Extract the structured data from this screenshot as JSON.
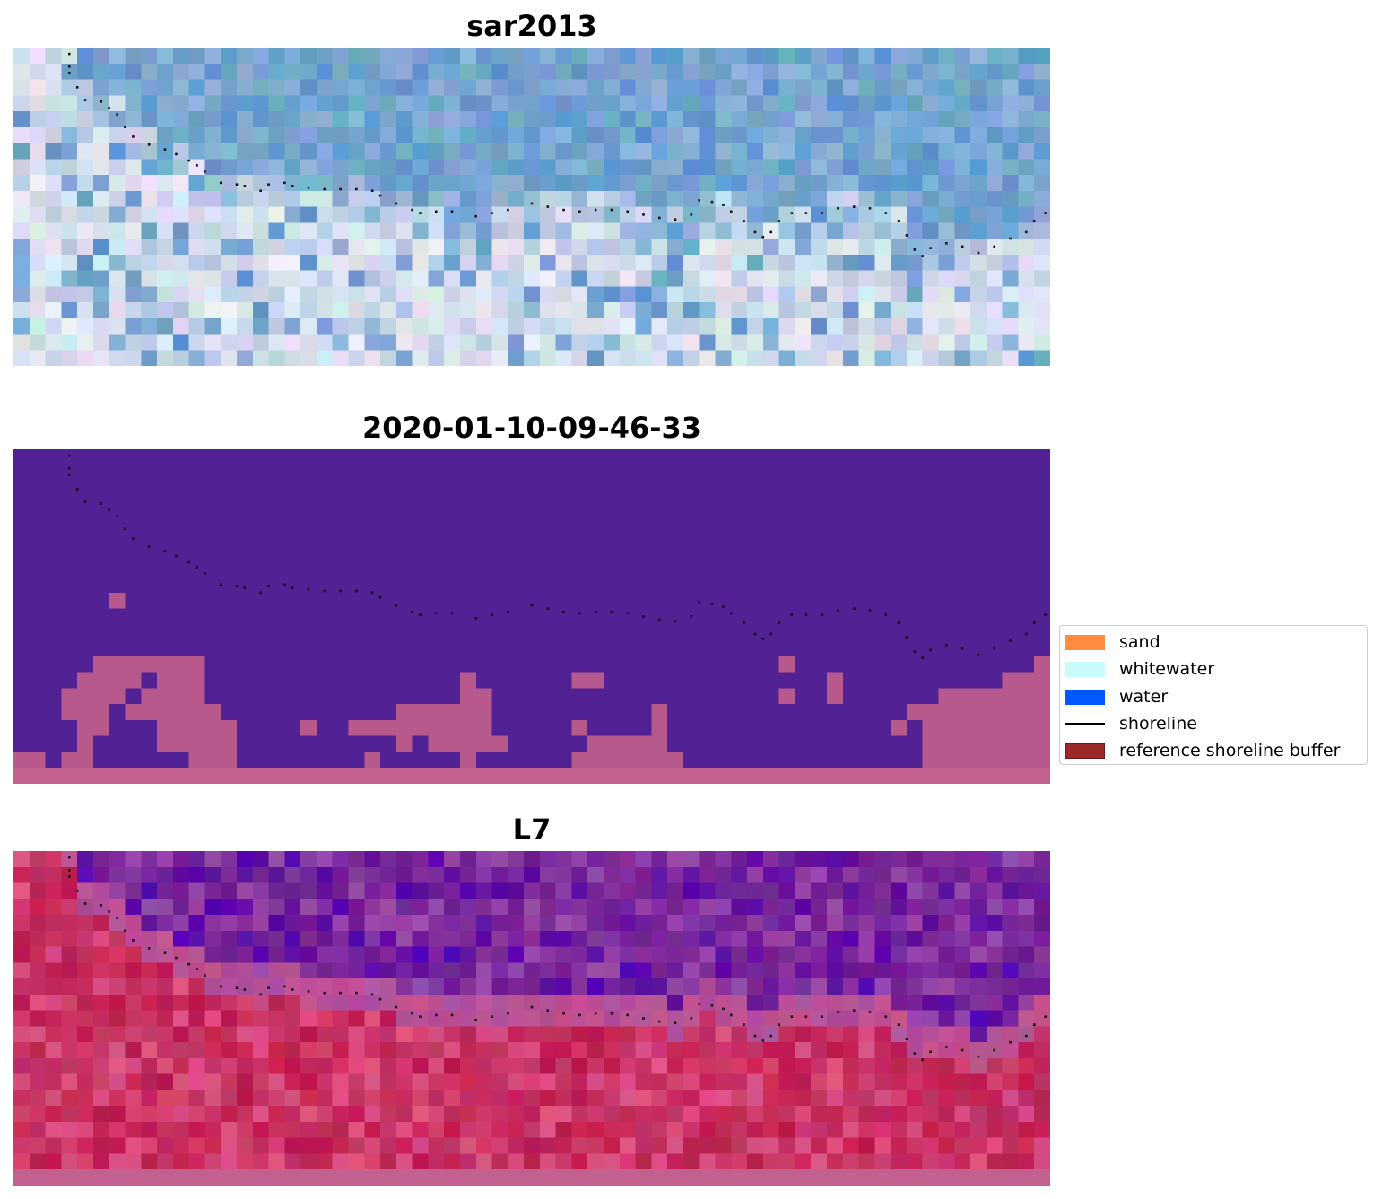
{
  "panels": [
    {
      "title": "sar2013",
      "palette": "sar"
    },
    {
      "title": "2020-01-10-09-46-33",
      "palette": "classified"
    },
    {
      "title": "L7",
      "palette": "l7"
    }
  ],
  "legend": {
    "items": [
      {
        "label": "sand",
        "kind": "patch",
        "color": "#ff8c3f"
      },
      {
        "label": "whitewater",
        "kind": "patch",
        "color": "#c8fcfa"
      },
      {
        "label": "water",
        "kind": "patch",
        "color": "#0059ff"
      },
      {
        "label": "shoreline",
        "kind": "line",
        "color": "#000000"
      },
      {
        "label": "reference shoreline buffer",
        "kind": "patch",
        "color": "#9a2828"
      }
    ]
  },
  "colors": {
    "classified_background": "#522294",
    "classified_patch": "#b8598e",
    "buffer_strip": "#c2608f",
    "shoreline_dots": "#000000",
    "legend_border": "#cccccc"
  },
  "shoreline": [
    [
      3.5,
      0.4
    ],
    [
      3.5,
      1.2
    ],
    [
      3.5,
      1.6
    ],
    [
      4,
      2.5
    ],
    [
      4.5,
      3.3
    ],
    [
      5.5,
      3.4
    ],
    [
      6,
      3.8
    ],
    [
      6.5,
      4.2
    ],
    [
      7,
      5
    ],
    [
      7.5,
      5.6
    ],
    [
      8.5,
      6.1
    ],
    [
      9.5,
      6.4
    ],
    [
      10.2,
      6.7
    ],
    [
      11,
      7.1
    ],
    [
      11.5,
      7.4
    ],
    [
      12,
      7.8
    ],
    [
      13,
      8.5
    ],
    [
      14,
      8.6
    ],
    [
      14.5,
      8.7
    ],
    [
      15.5,
      9
    ],
    [
      16,
      8.6
    ],
    [
      17,
      8.5
    ],
    [
      17.5,
      8.7
    ],
    [
      18.5,
      8.8
    ],
    [
      19.5,
      8.9
    ],
    [
      20.5,
      8.9
    ],
    [
      21.5,
      8.9
    ],
    [
      22.5,
      9
    ],
    [
      23,
      9.3
    ],
    [
      24,
      9.8
    ],
    [
      25,
      10.2
    ],
    [
      25.5,
      10.4
    ],
    [
      26.5,
      10.3
    ],
    [
      27.5,
      10.3
    ],
    [
      29,
      10.6
    ],
    [
      30,
      10.4
    ],
    [
      31,
      10.2
    ],
    [
      32.5,
      9.8
    ],
    [
      33.5,
      10
    ],
    [
      34.5,
      10.2
    ],
    [
      35.5,
      10.3
    ],
    [
      36.5,
      10.2
    ],
    [
      37.5,
      10.2
    ],
    [
      38.5,
      10.3
    ],
    [
      39.5,
      10.5
    ],
    [
      40.5,
      10.7
    ],
    [
      41.5,
      10.8
    ],
    [
      42.5,
      10.5
    ],
    [
      43,
      9.6
    ],
    [
      43.8,
      9.7
    ],
    [
      44.5,
      9.9
    ],
    [
      45,
      10.3
    ],
    [
      45.8,
      10.9
    ],
    [
      46.5,
      11.6
    ],
    [
      47,
      11.9
    ],
    [
      47.5,
      11.6
    ],
    [
      48,
      10.9
    ],
    [
      48.8,
      10.4
    ],
    [
      49.7,
      10.4
    ],
    [
      50.7,
      10.4
    ],
    [
      51.7,
      10.1
    ],
    [
      52.7,
      10
    ],
    [
      53.7,
      10.1
    ],
    [
      54.7,
      10.4
    ],
    [
      55.5,
      10.9
    ],
    [
      56,
      11.8
    ],
    [
      56.5,
      12.7
    ],
    [
      57,
      13.1
    ],
    [
      57.5,
      12.6
    ],
    [
      58.5,
      12.3
    ],
    [
      59.5,
      12.5
    ],
    [
      60.5,
      12.9
    ],
    [
      61.5,
      12.5
    ],
    [
      62.5,
      12
    ],
    [
      63.5,
      11.6
    ],
    [
      64,
      10.9
    ],
    [
      64.7,
      10.4
    ]
  ]
}
